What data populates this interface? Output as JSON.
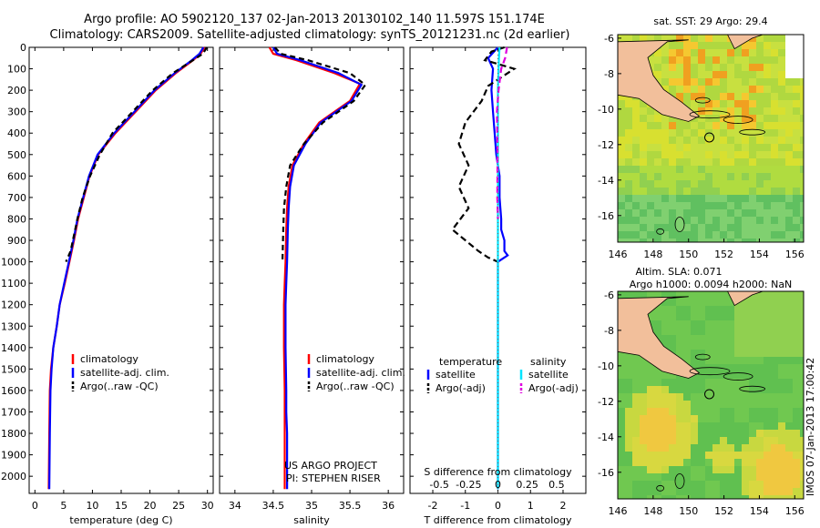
{
  "header": {
    "line1": "Argo profile: AO 5902120_137 02-Jan-2013 20130102_140 11.597S 151.174E",
    "line2": "Climatology: CARS2009. Satellite-adjusted climatology: synTS_20121231.nc (2d earlier)"
  },
  "credits": {
    "project": "US ARGO PROJECT",
    "pi": "PI: STEPHEN RISER",
    "imos": "IMOS 07-Jan-2013 17:00:42"
  },
  "colors": {
    "climatology": "#ff0000",
    "satellite": "#0000ff",
    "argo": "#000000",
    "sat_salinity": "#00e5ff",
    "argo_salinity": "#e000e0"
  },
  "chart_data": [
    {
      "id": "temperature",
      "type": "line",
      "xlabel": "temperature (deg C)",
      "xlim": [
        -1,
        31
      ],
      "ylim": [
        0,
        2080
      ],
      "y_reversed": true,
      "xticks": [
        0,
        5,
        10,
        15,
        20,
        25,
        30
      ],
      "yticks": [
        0,
        100,
        200,
        300,
        400,
        500,
        600,
        700,
        800,
        900,
        1000,
        1100,
        1200,
        1300,
        1400,
        1500,
        1600,
        1700,
        1800,
        1900,
        2000
      ],
      "legend": [
        "climatology",
        "satellite-adj. clim.",
        "Argo(..raw -QC)"
      ],
      "series": [
        {
          "name": "climatology",
          "color": "#ff0000",
          "dash": "",
          "x": [
            29.5,
            28.8,
            27.5,
            24.5,
            21,
            17.5,
            14,
            11,
            9.5,
            8.5,
            7.5,
            6.8,
            6,
            5.2,
            4.3,
            3.8,
            3.2,
            2.8,
            2.6,
            2.5,
            2.4
          ],
          "y": [
            0,
            30,
            60,
            120,
            200,
            300,
            400,
            500,
            600,
            700,
            800,
            900,
            1000,
            1100,
            1200,
            1300,
            1400,
            1500,
            1600,
            1800,
            2060
          ]
        },
        {
          "name": "satellite-adj. clim.",
          "color": "#0000ff",
          "dash": "",
          "x": [
            29.3,
            28.6,
            27.3,
            24.3,
            20.8,
            17.3,
            13.8,
            10.9,
            9.4,
            8.4,
            7.4,
            6.7,
            5.9,
            5.1,
            4.3,
            3.8,
            3.2,
            2.9,
            2.7,
            2.6,
            2.5
          ],
          "y": [
            0,
            30,
            60,
            120,
            200,
            300,
            400,
            500,
            600,
            700,
            800,
            900,
            1000,
            1100,
            1200,
            1300,
            1400,
            1500,
            1600,
            1800,
            2060
          ]
        },
        {
          "name": "Argo(..raw -QC)",
          "color": "#000000",
          "dash": "6 4",
          "x": [
            29.9,
            29.2,
            27.5,
            24,
            20.5,
            17,
            13.5,
            11.3,
            9.6,
            8.3,
            7.4,
            6.6,
            6.2,
            5.4
          ],
          "y": [
            0,
            30,
            60,
            120,
            200,
            300,
            400,
            500,
            600,
            700,
            800,
            900,
            950,
            1000
          ]
        }
      ]
    },
    {
      "id": "salinity",
      "type": "line",
      "xlabel": "salinity",
      "xlim": [
        33.8,
        36.2
      ],
      "ylim": [
        0,
        2080
      ],
      "y_reversed": true,
      "xticks": [
        34,
        34.5,
        35,
        35.5,
        36
      ],
      "legend": [
        "climatology",
        "satellite-adj. clim.",
        "Argo(..raw -QC)"
      ],
      "series": [
        {
          "name": "climatology",
          "color": "#ff0000",
          "dash": "",
          "x": [
            34.45,
            34.5,
            34.8,
            35.3,
            35.63,
            35.5,
            35.1,
            34.9,
            34.75,
            34.7,
            34.68,
            34.67,
            34.66,
            34.65,
            34.64,
            34.64,
            34.65,
            34.65,
            34.65,
            34.65,
            34.65
          ],
          "y": [
            0,
            30,
            60,
            120,
            170,
            250,
            350,
            450,
            550,
            650,
            750,
            850,
            1000,
            1100,
            1200,
            1400,
            1600,
            1700,
            1800,
            1900,
            2060
          ]
        },
        {
          "name": "satellite-adj. clim.",
          "color": "#0000ff",
          "dash": "",
          "x": [
            34.5,
            34.55,
            34.85,
            35.35,
            35.65,
            35.52,
            35.12,
            34.92,
            34.77,
            34.72,
            34.7,
            34.69,
            34.68,
            34.67,
            34.66,
            34.66,
            34.67,
            34.67,
            34.68,
            34.68,
            34.68
          ],
          "y": [
            0,
            30,
            60,
            120,
            175,
            250,
            350,
            450,
            550,
            650,
            750,
            850,
            1000,
            1100,
            1200,
            1400,
            1600,
            1700,
            1800,
            1900,
            2060
          ]
        },
        {
          "name": "Argo(..raw -QC)",
          "color": "#000000",
          "dash": "6 4",
          "x": [
            34.52,
            34.6,
            34.95,
            35.5,
            35.7,
            35.55,
            35.15,
            34.9,
            34.72,
            34.67,
            34.64,
            34.63,
            34.62
          ],
          "y": [
            0,
            30,
            60,
            120,
            175,
            250,
            350,
            450,
            550,
            650,
            750,
            850,
            1000
          ]
        }
      ]
    },
    {
      "id": "difference",
      "type": "line",
      "xlabel_top": "S difference from climatology",
      "xtick_labels_s": [
        "-0.5",
        "-0.25",
        "0",
        "0.25",
        "0.5"
      ],
      "xlabel": "T difference from climatology",
      "xlim": [
        -2.7,
        2.7
      ],
      "ylim": [
        0,
        2080
      ],
      "y_reversed": true,
      "xticks": [
        -2,
        -1,
        0,
        1,
        2
      ],
      "legend": {
        "temperature": [
          "satellite",
          "Argo(-adj)"
        ],
        "salinity": [
          "satellite",
          "Argo(-adj)"
        ]
      },
      "legend_titles": [
        "temperature",
        "salinity"
      ],
      "series": [
        {
          "name": "T satellite",
          "color": "#0000ff",
          "dash": "",
          "x": [
            0,
            -0.3,
            -0.15,
            -0.2,
            -0.15,
            -0.1,
            -0.05,
            0.05,
            0.05,
            0.1,
            0.1,
            0.2,
            0.2,
            0.3,
            0.1,
            0,
            0,
            0
          ],
          "y": [
            0,
            50,
            100,
            200,
            300,
            400,
            500,
            600,
            700,
            800,
            850,
            900,
            950,
            970,
            990,
            1000,
            1500,
            2060
          ]
        },
        {
          "name": "T Argo(-adj)",
          "color": "#000000",
          "dash": "7 4",
          "x": [
            0.2,
            -0.2,
            -0.4,
            0.5,
            -0.3,
            -0.5,
            -1.0,
            -1.2,
            -0.9,
            -1.2,
            -0.9,
            -1.4,
            -1.0,
            -0.6,
            -0.3,
            0
          ],
          "y": [
            0,
            20,
            60,
            100,
            180,
            250,
            350,
            450,
            550,
            650,
            750,
            850,
            900,
            950,
            980,
            1000
          ]
        },
        {
          "name": "S satellite",
          "color": "#00e5ff",
          "dash": "",
          "x": [
            0.05,
            0.03,
            0.02,
            0.0,
            0.0,
            0.0,
            0.0,
            0.0,
            0.0
          ],
          "y": [
            0,
            50,
            100,
            200,
            300,
            500,
            800,
            1200,
            2060
          ]
        },
        {
          "name": "S Argo(-adj)",
          "color": "#e000e0",
          "dash": "7 4",
          "x": [
            0.28,
            0.22,
            0.1,
            0.02,
            -0.03,
            -0.01,
            -0.02,
            0.0
          ],
          "y": [
            0,
            50,
            100,
            200,
            300,
            500,
            700,
            800
          ]
        }
      ]
    },
    {
      "id": "sst_map",
      "type": "heatmap",
      "title": "sat. SST: 29 Argo: 29.4",
      "xlim": [
        146,
        156.5
      ],
      "ylim": [
        -17.5,
        -5.8
      ],
      "xticks": [
        146,
        148,
        150,
        152,
        154,
        156
      ],
      "yticks": [
        -6,
        -8,
        -10,
        -12,
        -14,
        -16
      ],
      "marker": {
        "lon": 151.174,
        "lat": -11.597
      }
    },
    {
      "id": "sla_map",
      "type": "heatmap",
      "title": "Altim. SLA: 0.071",
      "subtitle": "Argo h1000: 0.0094 h2000: NaN",
      "xlim": [
        146,
        156.5
      ],
      "ylim": [
        -17.5,
        -5.8
      ],
      "xticks": [
        146,
        148,
        150,
        152,
        154,
        156
      ],
      "yticks": [
        -6,
        -8,
        -10,
        -12,
        -14,
        -16
      ],
      "marker": {
        "lon": 151.174,
        "lat": -11.597
      }
    }
  ]
}
